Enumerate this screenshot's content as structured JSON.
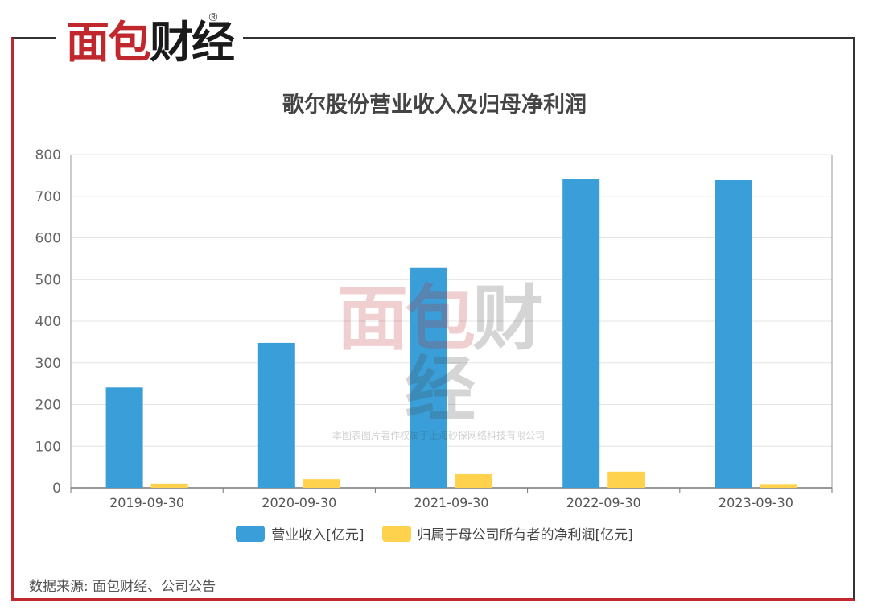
{
  "brand": {
    "logo_main": "面包",
    "logo_accent": "财经",
    "registered": "®"
  },
  "watermark": {
    "logo_main": "面包",
    "logo_accent": "财经",
    "registered": "®",
    "copyright": "本图表图片著作权属于上海砂探网络科技有限公司"
  },
  "source_note": "数据来源: 面包财经、公司公告",
  "colors": {
    "revenue": "#3a9fd8",
    "profit": "#ffd24d",
    "accent": "#c0282d"
  },
  "chart_data": {
    "type": "bar",
    "title": "歌尔股份营业收入及归母净利润",
    "categories": [
      "2019-09-30",
      "2020-09-30",
      "2021-09-30",
      "2022-09-30",
      "2023-09-30"
    ],
    "series": [
      {
        "name": "营业收入[亿元]",
        "values": [
          241,
          348,
          528,
          742,
          740
        ]
      },
      {
        "name": "归属于母公司所有者的净利润[亿元]",
        "values": [
          10,
          21,
          33,
          39,
          9
        ]
      }
    ],
    "ylim": [
      0,
      800
    ],
    "yticks": [
      0,
      100,
      200,
      300,
      400,
      500,
      600,
      700,
      800
    ],
    "grid": true,
    "legend": "bottom"
  }
}
